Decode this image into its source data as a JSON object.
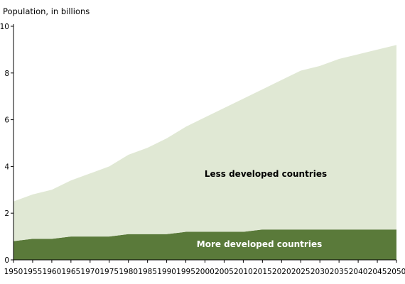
{
  "chart_data": {
    "type": "area",
    "stacked": true,
    "ylabel": "Population, in billions",
    "xlabel": "",
    "ylim": [
      0,
      10
    ],
    "xlim": [
      1950,
      2050
    ],
    "yticks": [
      "0",
      "2",
      "4",
      "6",
      "8",
      "10"
    ],
    "xticks": [
      "1950",
      "1955",
      "1960",
      "1965",
      "1970",
      "1975",
      "1980",
      "1985",
      "1990",
      "1995",
      "2000",
      "2005",
      "2010",
      "2015",
      "2020",
      "2025",
      "2030",
      "2035",
      "2040",
      "2045",
      "2050"
    ],
    "x": [
      1950,
      1955,
      1960,
      1965,
      1970,
      1975,
      1980,
      1985,
      1990,
      1995,
      2000,
      2005,
      2010,
      2015,
      2020,
      2025,
      2030,
      2035,
      2040,
      2045,
      2050
    ],
    "series": [
      {
        "name": "More developed countries",
        "color": "#5a7a3a",
        "values": [
          0.8,
          0.9,
          0.9,
          1.0,
          1.0,
          1.0,
          1.1,
          1.1,
          1.1,
          1.2,
          1.2,
          1.2,
          1.2,
          1.3,
          1.3,
          1.3,
          1.3,
          1.3,
          1.3,
          1.3,
          1.3
        ]
      },
      {
        "name": "Less developed countries",
        "color": "#e0e8d4",
        "values": [
          1.7,
          1.9,
          2.1,
          2.4,
          2.7,
          3.0,
          3.4,
          3.7,
          4.1,
          4.5,
          4.9,
          5.3,
          5.7,
          6.0,
          6.4,
          6.8,
          7.0,
          7.3,
          7.5,
          7.7,
          7.9
        ]
      }
    ],
    "annotations": [
      {
        "text": "Less developed countries",
        "color": "#000000"
      },
      {
        "text": "More developed countries",
        "color": "#ffffff"
      }
    ]
  }
}
